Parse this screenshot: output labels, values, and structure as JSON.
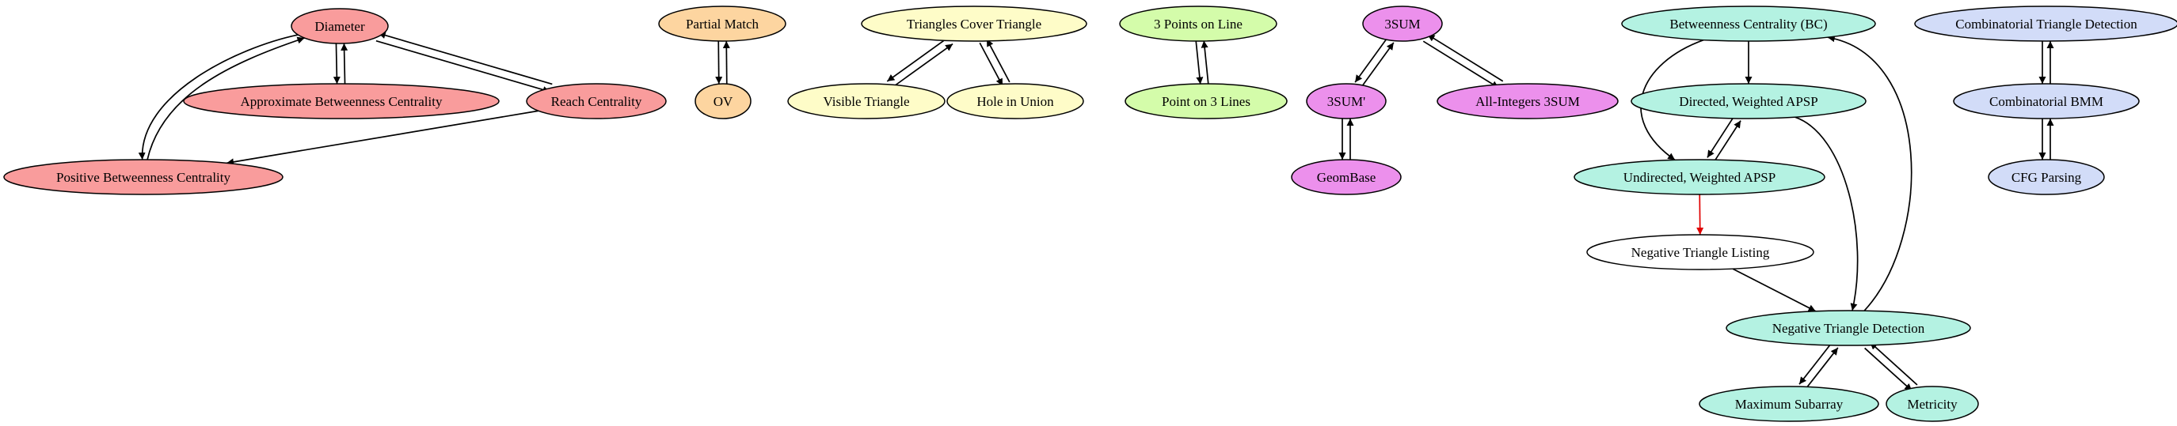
{
  "colors": {
    "red_group": "#f99c9c",
    "orange_group": "#fdd5a0",
    "yellow_group": "#fefcc8",
    "green_group": "#d4fcaa",
    "purple_group": "#ec90ec",
    "teal_group": "#b4f2e2",
    "blue_group": "#d2dcf8",
    "white": "#ffffff",
    "edge": "#000000",
    "highlight_edge": "#e00000"
  },
  "nodes": [
    {
      "id": "diameter",
      "label": "Diameter",
      "group": "red_group"
    },
    {
      "id": "approx-bc",
      "label": "Approximate Betweenness Centrality",
      "group": "red_group"
    },
    {
      "id": "reach-centrality",
      "label": "Reach Centrality",
      "group": "red_group"
    },
    {
      "id": "positive-bc",
      "label": "Positive Betweenness Centrality",
      "group": "red_group"
    },
    {
      "id": "partial-match",
      "label": "Partial Match",
      "group": "orange_group"
    },
    {
      "id": "ov",
      "label": "OV",
      "group": "orange_group"
    },
    {
      "id": "triangles-cover",
      "label": "Triangles Cover Triangle",
      "group": "yellow_group"
    },
    {
      "id": "visible-triangle",
      "label": "Visible Triangle",
      "group": "yellow_group"
    },
    {
      "id": "hole-in-union",
      "label": "Hole in Union",
      "group": "yellow_group"
    },
    {
      "id": "three-points-line",
      "label": "3 Points on Line",
      "group": "green_group"
    },
    {
      "id": "point-three-lines",
      "label": "Point on 3 Lines",
      "group": "green_group"
    },
    {
      "id": "three-sum",
      "label": "3SUM",
      "group": "purple_group"
    },
    {
      "id": "three-sum-prime",
      "label": "3SUM'",
      "group": "purple_group"
    },
    {
      "id": "all-integers-3sum",
      "label": "All-Integers 3SUM",
      "group": "purple_group"
    },
    {
      "id": "geombase",
      "label": "GeomBase",
      "group": "purple_group"
    },
    {
      "id": "bc",
      "label": "Betweenness Centrality (BC)",
      "group": "teal_group"
    },
    {
      "id": "directed-apsp",
      "label": "Directed, Weighted APSP",
      "group": "teal_group"
    },
    {
      "id": "undirected-apsp",
      "label": "Undirected, Weighted APSP",
      "group": "teal_group"
    },
    {
      "id": "neg-tri-listing",
      "label": "Negative Triangle Listing",
      "group": "white"
    },
    {
      "id": "neg-tri-detection",
      "label": "Negative Triangle Detection",
      "group": "teal_group"
    },
    {
      "id": "max-subarray",
      "label": "Maximum Subarray",
      "group": "teal_group"
    },
    {
      "id": "metricity",
      "label": "Metricity",
      "group": "teal_group"
    },
    {
      "id": "comb-tri-detection",
      "label": "Combinatorial Triangle Detection",
      "group": "blue_group"
    },
    {
      "id": "comb-bmm",
      "label": "Combinatorial BMM",
      "group": "blue_group"
    },
    {
      "id": "cfg-parsing",
      "label": "CFG Parsing",
      "group": "blue_group"
    }
  ],
  "edges": [
    {
      "from": "diameter",
      "to": "approx-bc"
    },
    {
      "from": "approx-bc",
      "to": "diameter"
    },
    {
      "from": "diameter",
      "to": "reach-centrality"
    },
    {
      "from": "reach-centrality",
      "to": "diameter"
    },
    {
      "from": "diameter",
      "to": "positive-bc"
    },
    {
      "from": "positive-bc",
      "to": "diameter"
    },
    {
      "from": "reach-centrality",
      "to": "positive-bc"
    },
    {
      "from": "partial-match",
      "to": "ov"
    },
    {
      "from": "ov",
      "to": "partial-match"
    },
    {
      "from": "triangles-cover",
      "to": "visible-triangle"
    },
    {
      "from": "visible-triangle",
      "to": "triangles-cover"
    },
    {
      "from": "triangles-cover",
      "to": "hole-in-union"
    },
    {
      "from": "hole-in-union",
      "to": "triangles-cover"
    },
    {
      "from": "three-points-line",
      "to": "point-three-lines"
    },
    {
      "from": "point-three-lines",
      "to": "three-points-line"
    },
    {
      "from": "three-sum",
      "to": "three-sum-prime"
    },
    {
      "from": "three-sum-prime",
      "to": "three-sum"
    },
    {
      "from": "three-sum",
      "to": "all-integers-3sum"
    },
    {
      "from": "all-integers-3sum",
      "to": "three-sum"
    },
    {
      "from": "three-sum-prime",
      "to": "geombase"
    },
    {
      "from": "geombase",
      "to": "three-sum-prime"
    },
    {
      "from": "bc",
      "to": "directed-apsp"
    },
    {
      "from": "bc",
      "to": "undirected-apsp"
    },
    {
      "from": "directed-apsp",
      "to": "undirected-apsp"
    },
    {
      "from": "undirected-apsp",
      "to": "directed-apsp"
    },
    {
      "from": "directed-apsp",
      "to": "neg-tri-detection"
    },
    {
      "from": "undirected-apsp",
      "to": "neg-tri-listing",
      "highlight": true
    },
    {
      "from": "neg-tri-listing",
      "to": "neg-tri-detection"
    },
    {
      "from": "neg-tri-detection",
      "to": "bc"
    },
    {
      "from": "neg-tri-detection",
      "to": "max-subarray"
    },
    {
      "from": "max-subarray",
      "to": "neg-tri-detection"
    },
    {
      "from": "neg-tri-detection",
      "to": "metricity"
    },
    {
      "from": "metricity",
      "to": "neg-tri-detection"
    },
    {
      "from": "comb-tri-detection",
      "to": "comb-bmm"
    },
    {
      "from": "comb-bmm",
      "to": "comb-tri-detection"
    },
    {
      "from": "comb-bmm",
      "to": "cfg-parsing"
    },
    {
      "from": "cfg-parsing",
      "to": "comb-bmm"
    }
  ]
}
